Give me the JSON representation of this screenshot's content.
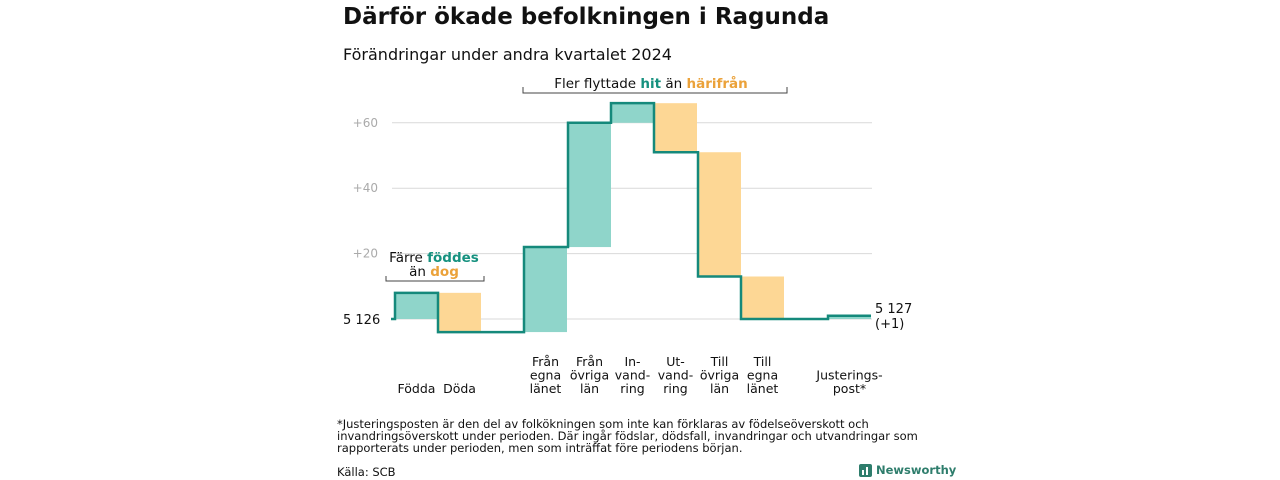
{
  "title": "Därför ökade befolkningen i Ragunda",
  "subtitle": "Förändringar under andra kvartalet 2024",
  "footnote": "*Justeringsposten är den del av folkökningen som inte kan förklaras av födelseöverskott och invandringsöverskott under perioden. Där ingår födslar, dödsfall, invandringar och utvandringar som rapporterats under perioden, men som inträffat före periodens början.",
  "source": "Källa: SCB",
  "brand": "Newsworthy",
  "colors": {
    "positive": "#8fd5ca",
    "negative": "#fdd795",
    "line": "#15897b",
    "hit_text": "#16917f",
    "harifran_text": "#eba23a",
    "grid": "#d9d9d9"
  },
  "chart_data": {
    "type": "waterfall",
    "start_label": "5 126",
    "end_label": "5 127",
    "end_change": "(+1)",
    "ylim": [
      -4,
      68
    ],
    "yticks": [
      {
        "value": 20,
        "label": "+20"
      },
      {
        "value": 40,
        "label": "+40"
      },
      {
        "value": 60,
        "label": "+60"
      }
    ],
    "steps": [
      {
        "label": [
          "Födda"
        ],
        "from": 0,
        "to": 8,
        "kind": "positive"
      },
      {
        "label": [
          "Döda"
        ],
        "from": 8,
        "to": -4,
        "kind": "negative"
      },
      {
        "label": [
          "Från",
          "egna",
          "länet"
        ],
        "from": -4,
        "to": 22,
        "kind": "positive"
      },
      {
        "label": [
          "Från",
          "övriga",
          "län"
        ],
        "from": 22,
        "to": 60,
        "kind": "positive"
      },
      {
        "label": [
          "In-",
          "vand-",
          "ring"
        ],
        "from": 60,
        "to": 66,
        "kind": "positive"
      },
      {
        "label": [
          "Ut-",
          "vand-",
          "ring"
        ],
        "from": 66,
        "to": 51,
        "kind": "negative"
      },
      {
        "label": [
          "Till",
          "övriga",
          "län"
        ],
        "from": 51,
        "to": 13,
        "kind": "negative"
      },
      {
        "label": [
          "Till",
          "egna",
          "länet"
        ],
        "from": 13,
        "to": 0,
        "kind": "negative"
      },
      {
        "label": [
          "Justerings-",
          "post*"
        ],
        "from": 0,
        "to": 1,
        "kind": "positive"
      }
    ],
    "annotations": {
      "births": {
        "line1_pre": "Färre ",
        "line1_hl": "föddes",
        "line2_pre": "än ",
        "line2_hl": "dog"
      },
      "migration": {
        "pre": "Fler flyttade ",
        "hl1": "hit",
        "mid": " än ",
        "hl2": "härifrån"
      }
    }
  }
}
